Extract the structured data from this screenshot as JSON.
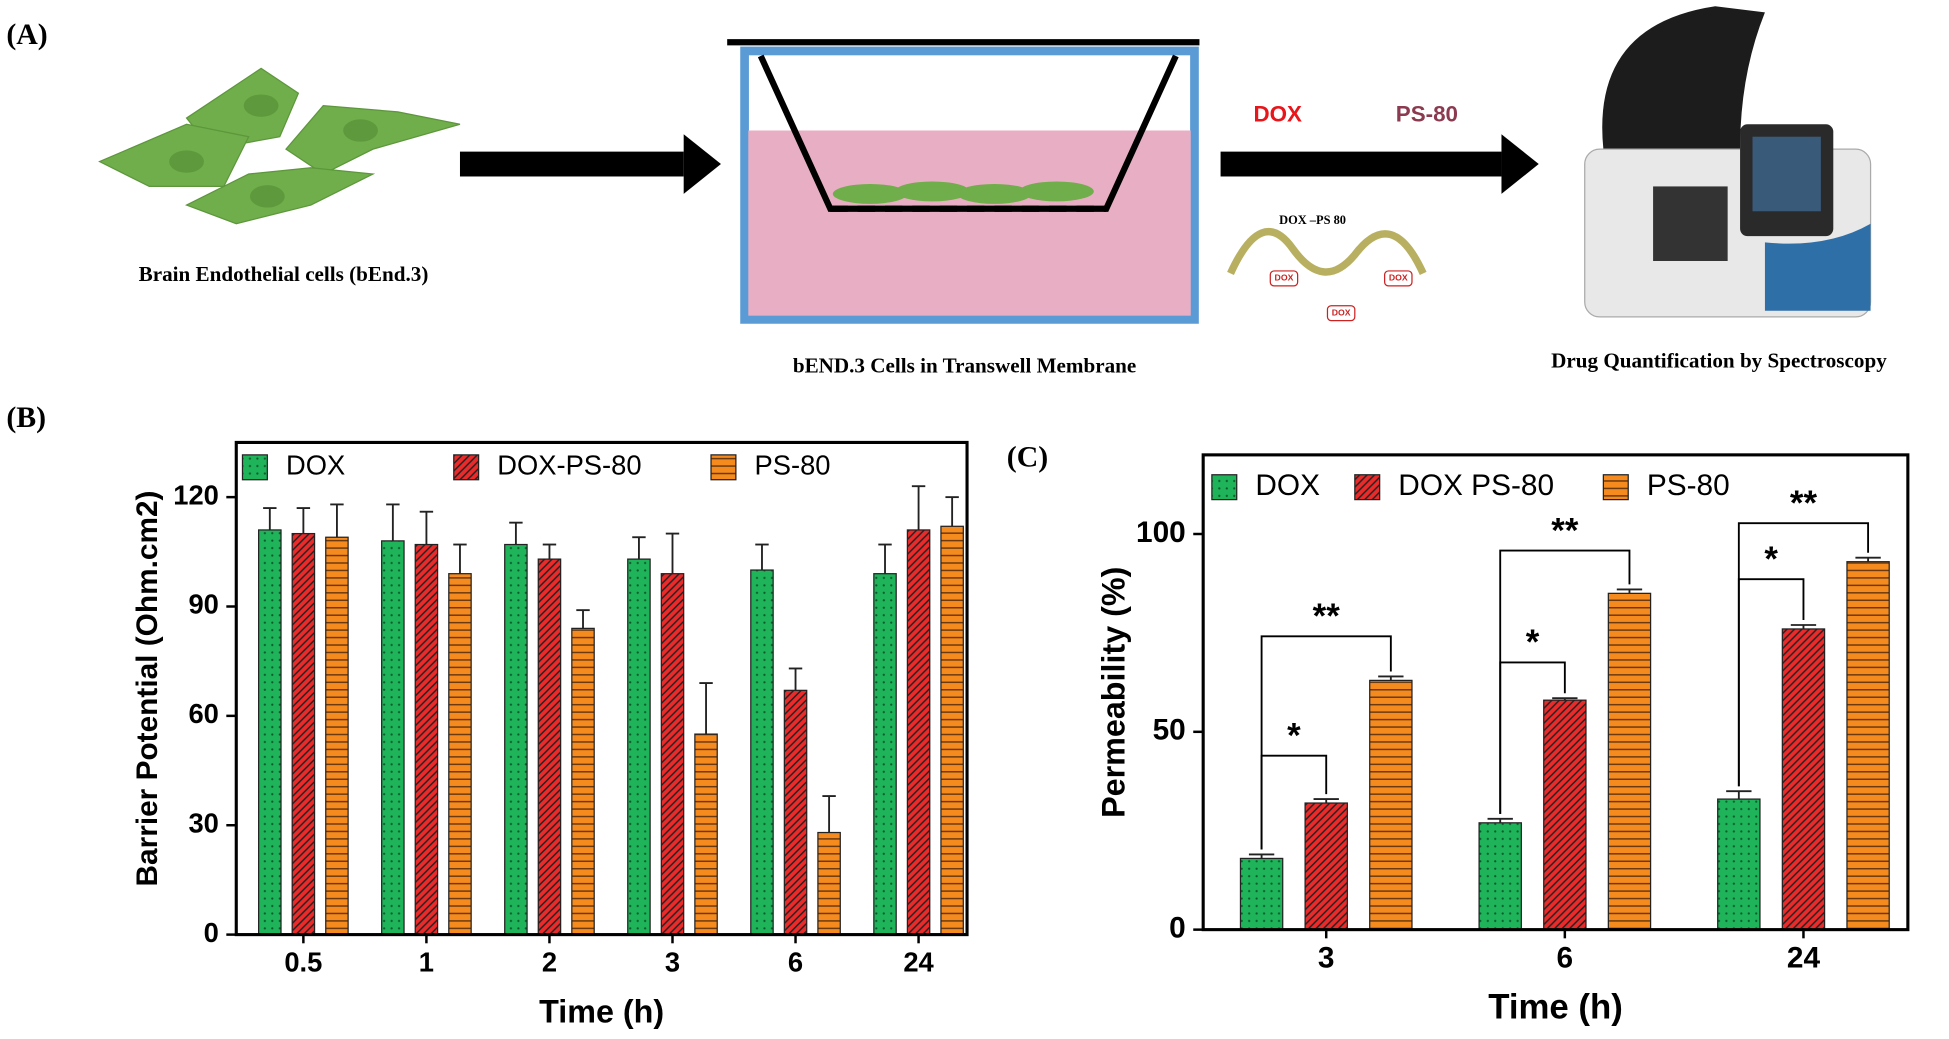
{
  "figure": {
    "panel_a": {
      "label": "(A)",
      "cells_caption": "Brain Endothelial cells (bEnd.3)",
      "transwell_caption": "bEND.3 Cells in Transwell Membrane",
      "drug_labels": [
        "DOX",
        "PS-80"
      ],
      "conjugate_label": "DOX –PS 80",
      "conjugate_tags": [
        "DOX",
        "DOX",
        "DOX"
      ],
      "instrument_caption": "Drug Quantification by Spectroscopy"
    }
  },
  "chart_data": [
    {
      "type": "bar",
      "panel_label": "(B)",
      "xlabel": "Time (h)",
      "ylabel": "Barrier Potential (Ohm.cm2)",
      "categories": [
        "0.5",
        "1",
        "2",
        "3",
        "6",
        "24"
      ],
      "series": [
        {
          "name": "DOX",
          "color": "#1fb45a",
          "pattern": "dots",
          "values": [
            111,
            108,
            107,
            103,
            100,
            99
          ],
          "errors": [
            6,
            10,
            6,
            6,
            7,
            8
          ]
        },
        {
          "name": "DOX-PS-80",
          "color": "#ec2a2a",
          "pattern": "hatch",
          "values": [
            110,
            107,
            103,
            99,
            67,
            111
          ],
          "errors": [
            7,
            9,
            4,
            11,
            6,
            12
          ]
        },
        {
          "name": "PS-80",
          "color": "#f58a1f",
          "pattern": "hlines",
          "values": [
            109,
            99,
            84,
            55,
            28,
            112
          ],
          "errors": [
            9,
            8,
            5,
            14,
            10,
            8
          ]
        }
      ],
      "ylim": [
        0,
        135
      ],
      "yticks": [
        0,
        30,
        60,
        90,
        120
      ]
    },
    {
      "type": "bar",
      "panel_label": "(C)",
      "xlabel": "Time (h)",
      "ylabel": "Permeability (%)",
      "categories": [
        "3",
        "6",
        "24"
      ],
      "series": [
        {
          "name": "DOX",
          "color": "#1fb45a",
          "pattern": "dots",
          "values": [
            18,
            27,
            33
          ],
          "errors": [
            1,
            1,
            2
          ]
        },
        {
          "name": "DOX PS-80",
          "color": "#ec2a2a",
          "pattern": "hatch",
          "values": [
            32,
            58,
            76
          ],
          "errors": [
            1,
            0.5,
            1
          ]
        },
        {
          "name": "PS-80",
          "color": "#f58a1f",
          "pattern": "hlines",
          "values": [
            63,
            85,
            93
          ],
          "errors": [
            1,
            1,
            1
          ]
        }
      ],
      "ylim": [
        0,
        120
      ],
      "yticks": [
        0,
        50,
        100
      ],
      "annotations": [
        "*",
        "**",
        "*",
        "**",
        "*",
        "**"
      ]
    }
  ]
}
